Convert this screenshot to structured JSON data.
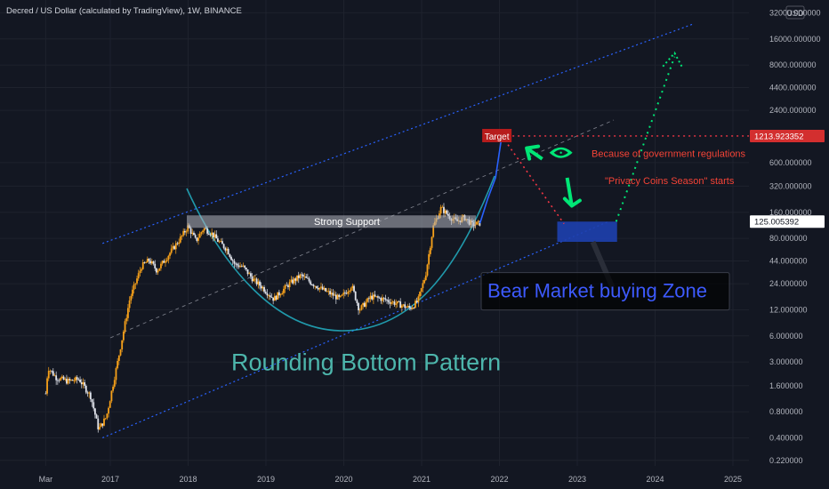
{
  "header": {
    "title": "Decred / US Dollar (calculated by TradingView), 1W, BINANCE"
  },
  "axis": {
    "currency": "USD",
    "y_ticks": [
      {
        "label": "32000.000000",
        "value": 32000
      },
      {
        "label": "16000.000000",
        "value": 16000
      },
      {
        "label": "8000.000000",
        "value": 8000
      },
      {
        "label": "4400.000000",
        "value": 4400
      },
      {
        "label": "2400.000000",
        "value": 2400
      },
      {
        "label": "600.000000",
        "value": 600
      },
      {
        "label": "320.000000",
        "value": 320
      },
      {
        "label": "160.000000",
        "value": 160
      },
      {
        "label": "80.000000",
        "value": 80
      },
      {
        "label": "44.000000",
        "value": 44
      },
      {
        "label": "24.000000",
        "value": 24
      },
      {
        "label": "12.000000",
        "value": 12
      },
      {
        "label": "6.000000",
        "value": 6
      },
      {
        "label": "3.000000",
        "value": 3
      },
      {
        "label": "1.600000",
        "value": 1.6
      },
      {
        "label": "0.800000",
        "value": 0.8
      },
      {
        "label": "0.400000",
        "value": 0.4
      },
      {
        "label": "0.220000",
        "value": 0.22
      }
    ],
    "price_markers": [
      {
        "label": "1213.923352",
        "value": 1213.923352,
        "color": "#d32f2f"
      },
      {
        "label": "125.005392",
        "value": 125.005392,
        "color": "#ffffff"
      }
    ],
    "x_ticks": [
      {
        "label": "Mar",
        "value": 2016.17
      },
      {
        "label": "2017",
        "value": 2017.0
      },
      {
        "label": "2018",
        "value": 2018.0
      },
      {
        "label": "2019",
        "value": 2019.0
      },
      {
        "label": "2020",
        "value": 2020.0
      },
      {
        "label": "2021",
        "value": 2021.0
      },
      {
        "label": "2022",
        "value": 2022.0
      },
      {
        "label": "2023",
        "value": 2023.0
      },
      {
        "label": "2024",
        "value": 2024.0
      },
      {
        "label": "2025",
        "value": 2025.0
      }
    ]
  },
  "annotations": {
    "strong_support": "Strong Support",
    "target": "Target",
    "regulation": "Because of government regulations",
    "privacy": "\"Privacy Coins Season\" starts",
    "buying_zone": "Bear Market buying Zone",
    "pattern": "Rounding Bottom Pattern"
  },
  "chart_data": {
    "type": "candlestick",
    "title": "Decred / US Dollar (calculated by TradingView), 1W, BINANCE",
    "y_scale": "log",
    "y_unit": "USD",
    "ylim": [
      0.19,
      45000
    ],
    "xlim": [
      2015.9,
      2025.5
    ],
    "price_path": [
      [
        2016.17,
        1.3
      ],
      [
        2016.2,
        2.6
      ],
      [
        2016.3,
        2.0
      ],
      [
        2016.45,
        1.8
      ],
      [
        2016.6,
        1.9
      ],
      [
        2016.75,
        1.2
      ],
      [
        2016.85,
        0.5
      ],
      [
        2016.95,
        0.7
      ],
      [
        2017.1,
        3.2
      ],
      [
        2017.25,
        16
      ],
      [
        2017.4,
        38
      ],
      [
        2017.5,
        45
      ],
      [
        2017.6,
        34
      ],
      [
        2017.75,
        52
      ],
      [
        2017.9,
        80
      ],
      [
        2018.0,
        110
      ],
      [
        2018.1,
        75
      ],
      [
        2018.2,
        105
      ],
      [
        2018.3,
        92
      ],
      [
        2018.4,
        72
      ],
      [
        2018.5,
        60
      ],
      [
        2018.6,
        40
      ],
      [
        2018.7,
        38
      ],
      [
        2018.85,
        26
      ],
      [
        2018.95,
        22
      ],
      [
        2019.1,
        16
      ],
      [
        2019.3,
        24
      ],
      [
        2019.45,
        30
      ],
      [
        2019.6,
        24
      ],
      [
        2019.75,
        20
      ],
      [
        2019.85,
        18
      ],
      [
        2019.95,
        16
      ],
      [
        2020.1,
        23
      ],
      [
        2020.2,
        12
      ],
      [
        2020.35,
        17
      ],
      [
        2020.5,
        16
      ],
      [
        2020.7,
        14
      ],
      [
        2020.85,
        12.5
      ],
      [
        2020.95,
        15
      ],
      [
        2021.05,
        30
      ],
      [
        2021.15,
        110
      ],
      [
        2021.25,
        180
      ],
      [
        2021.35,
        145
      ],
      [
        2021.45,
        125
      ],
      [
        2021.55,
        140
      ],
      [
        2021.65,
        115
      ],
      [
        2021.75,
        120
      ]
    ],
    "projection": [
      [
        2021.75,
        120
      ],
      [
        2021.85,
        230
      ],
      [
        2021.95,
        400
      ],
      [
        2022.03,
        1214
      ]
    ],
    "levels": {
      "target": 1213.923352,
      "support": 125.005392
    },
    "channel": {
      "upper": [
        [
          2016.9,
          70
        ],
        [
          2024.5,
          24000
        ]
      ],
      "lower": [
        [
          2016.9,
          0.4
        ],
        [
          2023.4,
          125
        ]
      ]
    },
    "buy_zone": {
      "x": [
        2022.8,
        2023.5
      ],
      "y": [
        73,
        125
      ]
    },
    "projection_path": [
      [
        2022.9,
        125
      ],
      [
        2023.5,
        125
      ],
      [
        2024.3,
        11000
      ]
    ]
  }
}
